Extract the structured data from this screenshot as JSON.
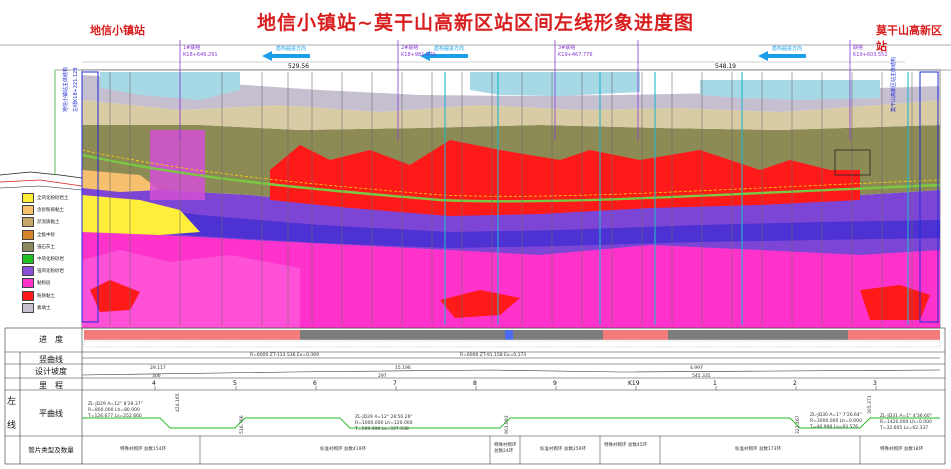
{
  "title": "地信小镇站~莫干山高新区站区间左线形象进度图",
  "stations": {
    "left": "地信小镇站",
    "right": "莫干山高新区站"
  },
  "top_labels": {
    "left_mark_1": "地信小镇站主体结构",
    "left_mark_2": "左线K18+221.128",
    "mark_a_name": "1#联络",
    "mark_a_k": "K18+646.291",
    "mark_b_name": "2#联络",
    "mark_b_k": "K18+981.070",
    "mark_c_name": "3#联络",
    "mark_c_k": "K19+467.776",
    "mark_d_name": "联络",
    "mark_d_k": "K19+603.552",
    "right_mark": "莫干山高新区站主体结构",
    "span_1": "529.56",
    "span_2": "548.19"
  },
  "directions": [
    "盾构掘进方向",
    "盾构掘进方向",
    "盾构掘进方向"
  ],
  "legend": [
    {
      "label": "全风化粉砂岩土",
      "color": "#ffef3a"
    },
    {
      "label": "含砂粉质黏土",
      "color": "#f6c06e"
    },
    {
      "label": "淤泥质黏土",
      "color": "#c8a86a"
    },
    {
      "label": "全极中砂",
      "color": "#d7842d"
    },
    {
      "label": "强石灰土",
      "color": "#8a8a62"
    },
    {
      "label": "中风化粉砂岩",
      "color": "#20c020"
    },
    {
      "label": "强风化粉砂岩",
      "color": "#8c52d6"
    },
    {
      "label": "黏粉层",
      "color": "#ff33cc"
    },
    {
      "label": "粉质黏土",
      "color": "#ff1a1a"
    },
    {
      "label": "素填土",
      "color": "#c6bfd0"
    }
  ],
  "row_labels": {
    "progress": "进　度",
    "vertical_curve": "竖曲线",
    "design_slope": "设计坡度",
    "mileage": "里　程",
    "plan_curve": "平曲线",
    "segment_type": "管片类型及数量",
    "side": "左线"
  },
  "vertical_curve": {
    "left": "R=6000 ZT-113.536 Ex=0.369",
    "right": "R=6000 ZT-91.158 Ex=0.173"
  },
  "design_slope": {
    "left_value": "29.117",
    "left_len": "306",
    "mid_value": "15.196",
    "mid_len": "297",
    "right_value": "4.997",
    "right_len": "545.335"
  },
  "mileage_ticks": [
    "4",
    "5",
    "6",
    "7",
    "8",
    "9",
    "K19",
    "1",
    "2",
    "3"
  ],
  "plan_curve": {
    "c1_line1": "ZL-JD29  A=12° 8'29.37\"",
    "c1_line2": "R=800.000 Lh=80.000",
    "c1_line3": "T=126.677 Ls=252.660",
    "c1_v": "424.165",
    "c1_v2": "516.766",
    "c2_line1": "ZL-JD29  A=12° 26'50.26\"",
    "c2_line2": "R=1000.000 Lh=120.000",
    "c2_line3": "T=169.408 Ls=337.038",
    "c2_v": "901.093",
    "c3_line1": "ZL-JD30  A=1° 7'26.64\"",
    "c3_line2": "R=3000.000 Lh=0.000",
    "c3_line3": "T=46.998 Ls=93.576",
    "c3_v": "322.467",
    "c4_line1": "ZL-JD31  A=1° 4'36.60\"",
    "c4_line2": "R=1420.000 Lh=0.000",
    "c4_line3": "T=32.605 Ls=62.337",
    "c4_v": "305.371"
  },
  "segment_types": [
    "特殊衬砌环 总数154环",
    "标准衬砌环 总数419环",
    "特殊衬砌环 总数24环",
    "标准衬砌环 总数259环",
    "特殊衬砌环 总数45环",
    "标准衬砌环 总数173环",
    "特殊衬砌环 总数18环"
  ]
}
